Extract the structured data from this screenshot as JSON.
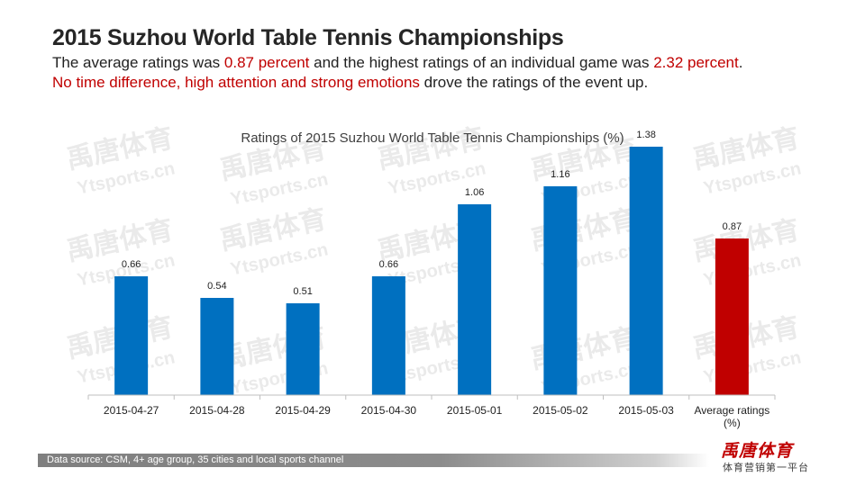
{
  "header": {
    "title": "2015 Suzhou World Table Tennis Championships",
    "line1_a": "The average ratings was ",
    "line1_b": "0.87 percent",
    "line1_c": " and the highest ratings of an individual game was ",
    "line1_d": "2.32 percent",
    "line1_e": ".",
    "line2_a": "No time difference, high attention  and strong emotions",
    "line2_b": " drove the ratings of the event up."
  },
  "watermark": {
    "cn": "禹唐体育",
    "en": "Ytsports.cn"
  },
  "chart_data": {
    "type": "bar",
    "title": "Ratings of 2015 Suzhou  World Table Tennis Championships (%)",
    "categories": [
      "2015-04-27",
      "2015-04-28",
      "2015-04-29",
      "2015-04-30",
      "2015-05-01",
      "2015-05-02",
      "2015-05-03",
      "Average ratings (%)"
    ],
    "category_lines": [
      [
        "2015-04-27"
      ],
      [
        "2015-04-28"
      ],
      [
        "2015-04-29"
      ],
      [
        "2015-04-30"
      ],
      [
        "2015-05-01"
      ],
      [
        "2015-05-02"
      ],
      [
        "2015-05-03"
      ],
      [
        "Average ratings",
        "(%)"
      ]
    ],
    "values": [
      0.66,
      0.54,
      0.51,
      0.66,
      1.06,
      1.16,
      1.38,
      0.87
    ],
    "value_labels": [
      "0.66",
      "0.54",
      "0.51",
      "0.66",
      "1.06",
      "1.16",
      "1.38",
      "0.87"
    ],
    "bar_colors": [
      "#0070c0",
      "#0070c0",
      "#0070c0",
      "#0070c0",
      "#0070c0",
      "#0070c0",
      "#0070c0",
      "#c00000"
    ],
    "xlabel": "",
    "ylabel": "",
    "ylim": [
      0,
      1.5
    ],
    "grid": false,
    "legend": "none"
  },
  "footer": {
    "source": "Data source: CSM, 4+ age group, 35 cities and local sports channel",
    "logo_text": "禹唐体育",
    "tagline": "体育营销第一平台"
  }
}
